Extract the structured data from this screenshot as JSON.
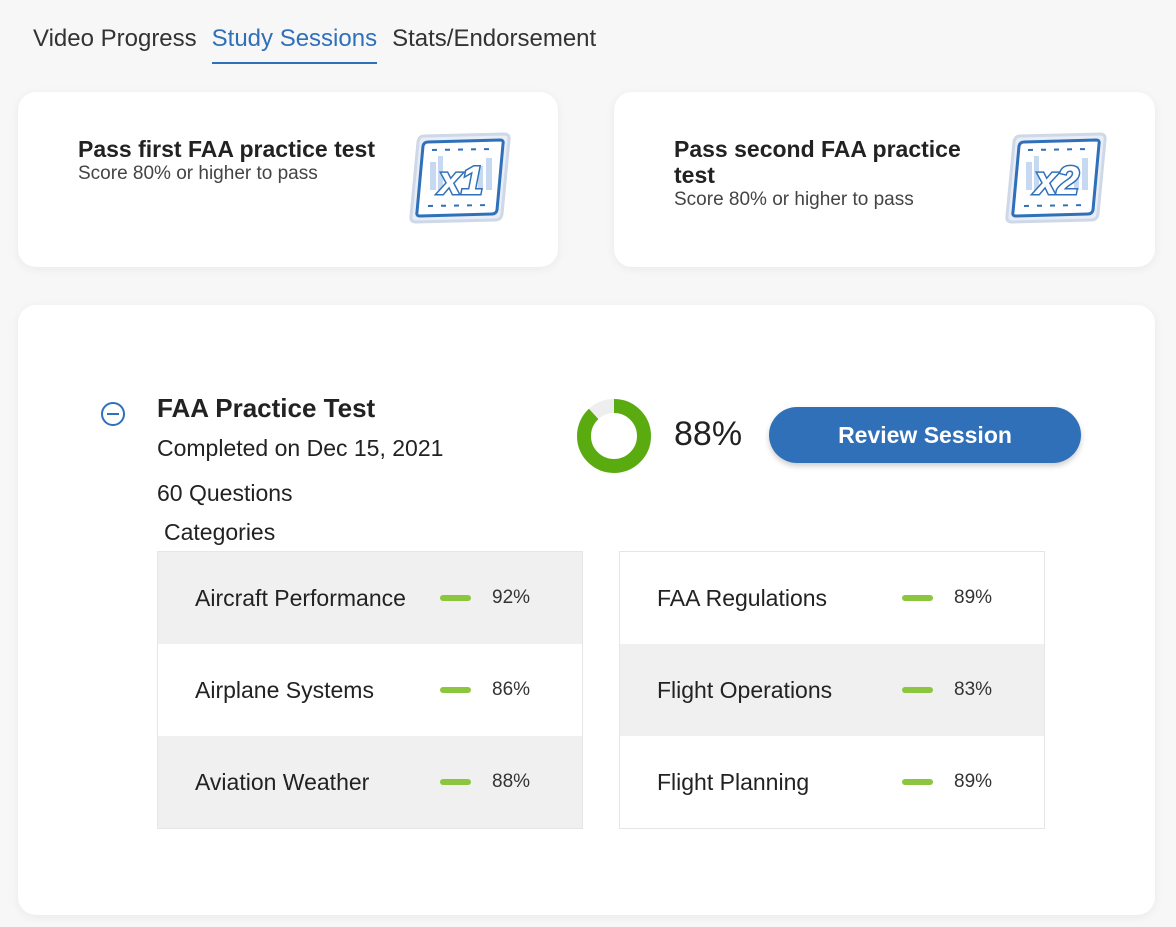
{
  "tabs": [
    {
      "label": "Video Progress",
      "active": false
    },
    {
      "label": "Study Sessions",
      "active": true
    },
    {
      "label": "Stats/Endorsement",
      "active": false
    }
  ],
  "goals": [
    {
      "title": "Pass first FAA practice test",
      "subtitle": "Score 80% or higher to pass",
      "badge_text": "x1",
      "badge_icon": "x1-badge-icon"
    },
    {
      "title": "Pass second FAA practice test",
      "subtitle": "Score 80% or higher to pass",
      "badge_text": "x2",
      "badge_icon": "x2-badge-icon"
    }
  ],
  "session": {
    "title": "FAA Practice Test",
    "completed": "Completed on Dec 15, 2021",
    "questions": "60 Questions",
    "categories_label": "Categories",
    "score_label": "88%",
    "score_value": 88,
    "review_button": "Review Session",
    "collapse_icon": "minus-circle-icon"
  },
  "categories": {
    "left": [
      {
        "name": "Aircraft Performance",
        "pct": "92%"
      },
      {
        "name": "Airplane Systems",
        "pct": "86%"
      },
      {
        "name": "Aviation Weather",
        "pct": "88%"
      }
    ],
    "right": [
      {
        "name": "FAA Regulations",
        "pct": "89%"
      },
      {
        "name": "Flight Operations",
        "pct": "83%"
      },
      {
        "name": "Flight Planning",
        "pct": "89%"
      }
    ]
  },
  "colors": {
    "accent": "#2f70b9",
    "donut_fill": "#5aab10",
    "donut_track": "#eeeeee",
    "bar": "#8cc63f"
  }
}
